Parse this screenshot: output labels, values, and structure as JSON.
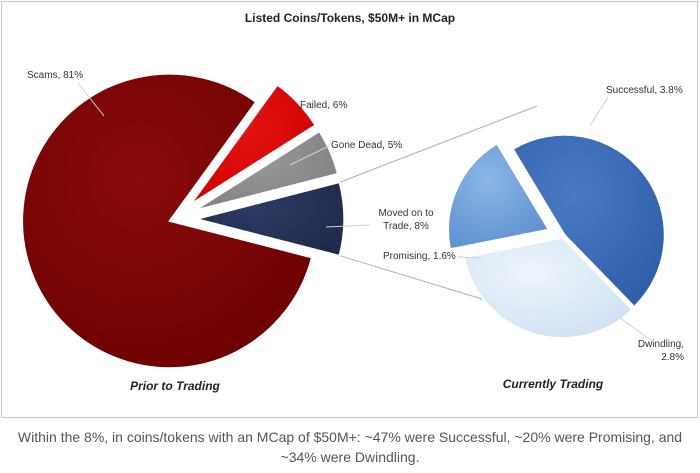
{
  "chart_data": [
    {
      "type": "pie",
      "title": "Listed Coins/Tokens, $50M+ in MCap",
      "subtitle": "Prior to Trading",
      "slices": [
        {
          "label": "Scams, 81%",
          "value": 81,
          "color": "#6b0000"
        },
        {
          "label": "Failed, 6%",
          "value": 6,
          "color": "#cc0000"
        },
        {
          "label": "Gone Dead, 5%",
          "value": 5,
          "color": "#7f7f7f"
        },
        {
          "label": "Moved on to Trade, 8%",
          "value": 8,
          "color": "#1f2a4a"
        }
      ]
    },
    {
      "type": "pie",
      "subtitle": "Currently Trading",
      "slices": [
        {
          "label": "Successful, 3.8%",
          "value": 3.8,
          "color": "#2f5ea8"
        },
        {
          "label": "Dwindling, 2.8%",
          "value": 2.8,
          "color": "#cfe0f3"
        },
        {
          "label": "Promising, 1.6%",
          "value": 1.6,
          "color": "#5b8fcf"
        }
      ]
    }
  ],
  "caption": {
    "line1": "Within the 8%, in coins/tokens with an MCap of $50M+: ~47% were Successful, ~20% were Promising, and",
    "line2": "~34% were Dwindling."
  }
}
